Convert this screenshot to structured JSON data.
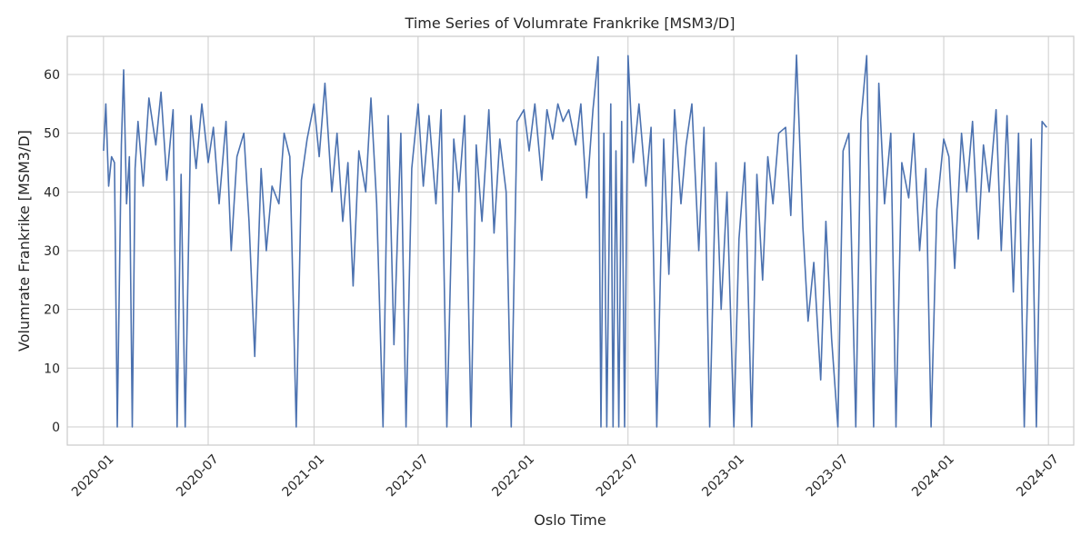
{
  "chart_data": {
    "type": "line",
    "title": "Time Series of Volumrate Frankrike [MSM3/D]",
    "xlabel": "Oslo Time",
    "ylabel": "Volumrate Frankrike [MSM3/D]",
    "xlim": [
      "2019-10-30",
      "2024-08-14"
    ],
    "ylim": [
      -3.1,
      66.5
    ],
    "x_ticks": [
      "2020-01",
      "2020-07",
      "2021-01",
      "2021-07",
      "2022-01",
      "2022-07",
      "2023-01",
      "2023-07",
      "2024-01",
      "2024-07"
    ],
    "y_ticks": [
      0,
      10,
      20,
      30,
      40,
      50,
      60
    ],
    "grid": true,
    "line_color": "#4c72b0",
    "series": [
      {
        "x": [
          "2020-01-01",
          "2020-01-05",
          "2020-01-10",
          "2020-01-15",
          "2020-01-20",
          "2020-01-25",
          "2020-02-01",
          "2020-02-05",
          "2020-02-10",
          "2020-02-15",
          "2020-02-20",
          "2020-02-25",
          "2020-03-01",
          "2020-03-10",
          "2020-03-20",
          "2020-04-01",
          "2020-04-10",
          "2020-04-20",
          "2020-05-01",
          "2020-05-08",
          "2020-05-15",
          "2020-05-22",
          "2020-06-01",
          "2020-06-10",
          "2020-06-20",
          "2020-07-01",
          "2020-07-10",
          "2020-07-20",
          "2020-08-01",
          "2020-08-10",
          "2020-08-20",
          "2020-09-01",
          "2020-09-10",
          "2020-09-20",
          "2020-10-01",
          "2020-10-10",
          "2020-10-20",
          "2020-11-01",
          "2020-11-10",
          "2020-11-20",
          "2020-12-01",
          "2020-12-10",
          "2020-12-20",
          "2021-01-01",
          "2021-01-10",
          "2021-01-20",
          "2021-02-01",
          "2021-02-10",
          "2021-02-20",
          "2021-03-01",
          "2021-03-10",
          "2021-03-20",
          "2021-04-01",
          "2021-04-10",
          "2021-04-20",
          "2021-05-01",
          "2021-05-10",
          "2021-05-20",
          "2021-06-01",
          "2021-06-10",
          "2021-06-20",
          "2021-07-01",
          "2021-07-10",
          "2021-07-20",
          "2021-08-01",
          "2021-08-10",
          "2021-08-20",
          "2021-09-01",
          "2021-09-10",
          "2021-09-20",
          "2021-10-01",
          "2021-10-10",
          "2021-10-20",
          "2021-11-01",
          "2021-11-10",
          "2021-11-20",
          "2021-12-01",
          "2021-12-10",
          "2021-12-20",
          "2022-01-01",
          "2022-01-10",
          "2022-01-20",
          "2022-02-01",
          "2022-02-10",
          "2022-02-20",
          "2022-03-01",
          "2022-03-10",
          "2022-03-20",
          "2022-04-01",
          "2022-04-10",
          "2022-04-20",
          "2022-05-01",
          "2022-05-10",
          "2022-05-15",
          "2022-05-20",
          "2022-05-25",
          "2022-06-01",
          "2022-06-05",
          "2022-06-10",
          "2022-06-15",
          "2022-06-20",
          "2022-06-25",
          "2022-07-01",
          "2022-07-10",
          "2022-07-20",
          "2022-08-01",
          "2022-08-10",
          "2022-08-20",
          "2022-09-01",
          "2022-09-10",
          "2022-09-20",
          "2022-10-01",
          "2022-10-10",
          "2022-10-20",
          "2022-11-01",
          "2022-11-10",
          "2022-11-20",
          "2022-12-01",
          "2022-12-10",
          "2022-12-20",
          "2023-01-01",
          "2023-01-10",
          "2023-01-20",
          "2023-02-01",
          "2023-02-10",
          "2023-02-20",
          "2023-03-01",
          "2023-03-10",
          "2023-03-20",
          "2023-04-01",
          "2023-04-10",
          "2023-04-20",
          "2023-05-01",
          "2023-05-10",
          "2023-05-20",
          "2023-06-01",
          "2023-06-10",
          "2023-06-20",
          "2023-07-01",
          "2023-07-10",
          "2023-07-20",
          "2023-08-01",
          "2023-08-10",
          "2023-08-20",
          "2023-09-01",
          "2023-09-10",
          "2023-09-20",
          "2023-10-01",
          "2023-10-10",
          "2023-10-20",
          "2023-11-01",
          "2023-11-10",
          "2023-11-20",
          "2023-12-01",
          "2023-12-10",
          "2023-12-20",
          "2024-01-01",
          "2024-01-10",
          "2024-01-20",
          "2024-02-01",
          "2024-02-10",
          "2024-02-20",
          "2024-03-01",
          "2024-03-10",
          "2024-03-20",
          "2024-04-01",
          "2024-04-10",
          "2024-04-20",
          "2024-05-01",
          "2024-05-10",
          "2024-05-20",
          "2024-06-01",
          "2024-06-10",
          "2024-06-20",
          "2024-06-28"
        ],
        "values": [
          47,
          55,
          41,
          46,
          45,
          0,
          48,
          60.8,
          38,
          46,
          0,
          44,
          52,
          41,
          56,
          48,
          57,
          42,
          54,
          0,
          43,
          0,
          53,
          44,
          55,
          45,
          51,
          38,
          52,
          30,
          46,
          50,
          35,
          12,
          44,
          30,
          41,
          38,
          50,
          46,
          0,
          42,
          49,
          55,
          46,
          58.5,
          40,
          50,
          35,
          45,
          24,
          47,
          40,
          56,
          38,
          0,
          53,
          14,
          50,
          0,
          44,
          55,
          41,
          53,
          38,
          54,
          0,
          49,
          40,
          53,
          0,
          48,
          35,
          54,
          33,
          49,
          40,
          0,
          52,
          54,
          47,
          55,
          42,
          54,
          49,
          55,
          52,
          54,
          48,
          55,
          39,
          54,
          63,
          0,
          50,
          0,
          55,
          0,
          47,
          0,
          52,
          0,
          63.2,
          45,
          55,
          41,
          51,
          0,
          49,
          26,
          54,
          38,
          48,
          55,
          30,
          51,
          0,
          45,
          20,
          40,
          0,
          32,
          45,
          0,
          43,
          25,
          46,
          38,
          50,
          51,
          36,
          63.3,
          34,
          18,
          28,
          8,
          35,
          15,
          0,
          47,
          50,
          0,
          52,
          63.2,
          0,
          58.5,
          38,
          50,
          0,
          45,
          39,
          50,
          30,
          44,
          0,
          37,
          49,
          46,
          27,
          50,
          40,
          52,
          32,
          48,
          40,
          54,
          30,
          53,
          23,
          50,
          0,
          49,
          0,
          52,
          51
        ]
      }
    ]
  }
}
